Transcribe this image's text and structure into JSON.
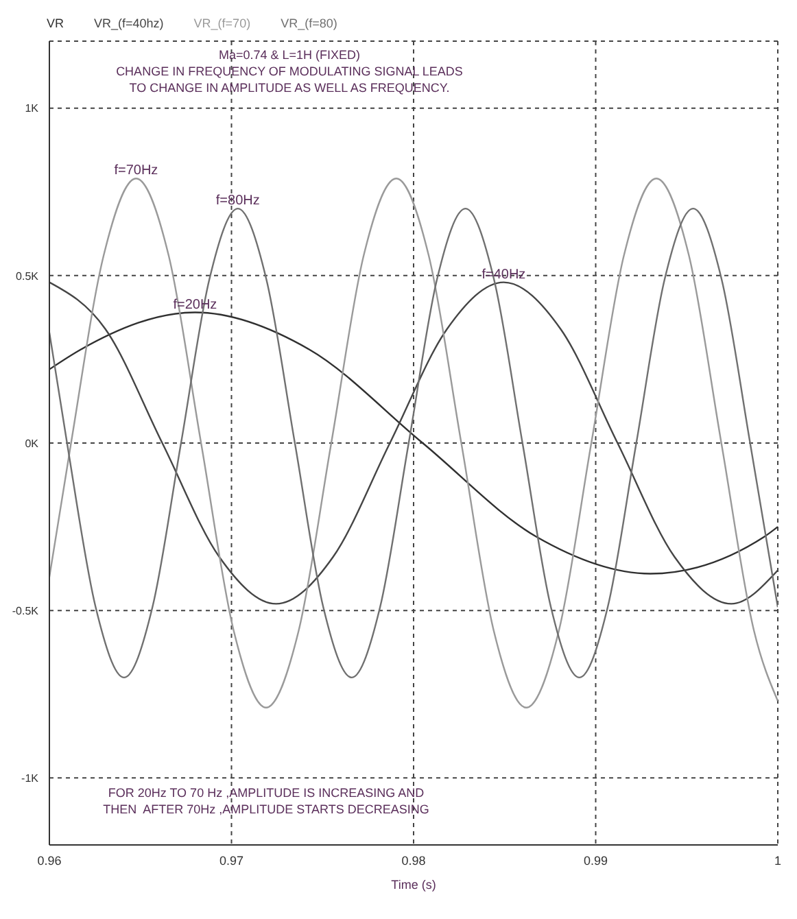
{
  "chart_data": {
    "type": "line",
    "xlabel": "Time (s)",
    "xlim": [
      0.96,
      1
    ],
    "xticks": [
      0.96,
      0.97,
      0.98,
      0.99,
      1
    ],
    "ylim": [
      -1.2,
      1.2
    ],
    "yticks": [
      {
        "value": -1,
        "label": "-1K"
      },
      {
        "value": -0.5,
        "label": "-0.5K"
      },
      {
        "value": 0,
        "label": "0K"
      },
      {
        "value": 0.5,
        "label": "0.5K"
      },
      {
        "value": 1,
        "label": "1K"
      }
    ],
    "grid": true,
    "legend": "top left",
    "marker": "none",
    "line_style": "solid",
    "series": [
      {
        "name": "VR",
        "color": "#303030",
        "x": [
          0.96,
          0.96175,
          0.968,
          0.97425,
          0.9805,
          0.98675,
          0.993,
          0.99925,
          1
        ],
        "values": [
          0.22,
          0.28,
          0.39,
          0.28,
          0,
          -0.28,
          -0.39,
          -0.28,
          -0.25
        ]
      },
      {
        "name": "VR_(f=40hz)",
        "color": "#454545",
        "x": [
          0.96,
          0.96308,
          0.9662,
          0.96933,
          0.97245,
          0.97558,
          0.9787,
          0.98183,
          0.98495,
          0.98808,
          0.9912,
          0.99433,
          0.99745,
          1
        ],
        "values": [
          0.48,
          0.34,
          0,
          -0.34,
          -0.48,
          -0.34,
          0,
          0.34,
          0.48,
          0.34,
          0,
          -0.34,
          -0.48,
          -0.38
        ]
      },
      {
        "name": "VR_(f=70)",
        "color": "#9a9a9a",
        "x": [
          0.96,
          0.96119,
          0.96298,
          0.96476,
          0.96655,
          0.96833,
          0.97012,
          0.9719,
          0.97369,
          0.97548,
          0.97726,
          0.97905,
          0.98083,
          0.98262,
          0.9844,
          0.98619,
          0.98798,
          0.98976,
          0.99155,
          0.99333,
          0.99512,
          0.9969,
          0.99869,
          1
        ],
        "values": [
          -0.4,
          0,
          0.56,
          0.79,
          0.56,
          0,
          -0.56,
          -0.79,
          -0.56,
          0,
          0.56,
          0.79,
          0.56,
          0,
          -0.56,
          -0.79,
          -0.56,
          0,
          0.56,
          0.79,
          0.56,
          0,
          -0.56,
          -0.77
        ]
      },
      {
        "name": "VR_(f=80)",
        "color": "#707070",
        "x": [
          0.96,
          0.96097,
          0.96254,
          0.9641,
          0.96566,
          0.96723,
          0.96879,
          0.97035,
          0.97191,
          0.97348,
          0.97504,
          0.9766,
          0.97816,
          0.97973,
          0.98129,
          0.98285,
          0.98441,
          0.98598,
          0.98754,
          0.9891,
          0.99066,
          0.99223,
          0.99379,
          0.99535,
          0.99691,
          0.99848,
          1
        ],
        "values": [
          0.33,
          0,
          -0.49,
          -0.7,
          -0.49,
          0,
          0.49,
          0.7,
          0.49,
          0,
          -0.49,
          -0.7,
          -0.49,
          0,
          0.49,
          0.7,
          0.49,
          0,
          -0.49,
          -0.7,
          -0.49,
          0,
          0.49,
          0.7,
          0.49,
          0,
          -0.49
        ]
      }
    ],
    "annotations": [
      "Ma=0.74 & L=1H (FIXED)",
      "CHANGE IN FREQUENCY OF MODULATING SIGNAL LEADS",
      "TO CHANGE IN AMPLITUDE AS WELL AS FREQUENCY.",
      "FOR 20Hz TO 70 Hz ,AMPLITUDE IS INCREASING AND",
      "THEN  AFTER 70Hz ,AMPLITUDE STARTS DECREASING",
      {
        "text": "f=70Hz",
        "x": 0.96476,
        "y": 0.79
      },
      {
        "text": "f=80Hz",
        "x": 0.97035,
        "y": 0.7
      },
      {
        "text": "f=20Hz",
        "x": 0.968,
        "y": 0.39
      },
      {
        "text": "f=40Hz",
        "x": 0.98495,
        "y": 0.48
      }
    ]
  }
}
